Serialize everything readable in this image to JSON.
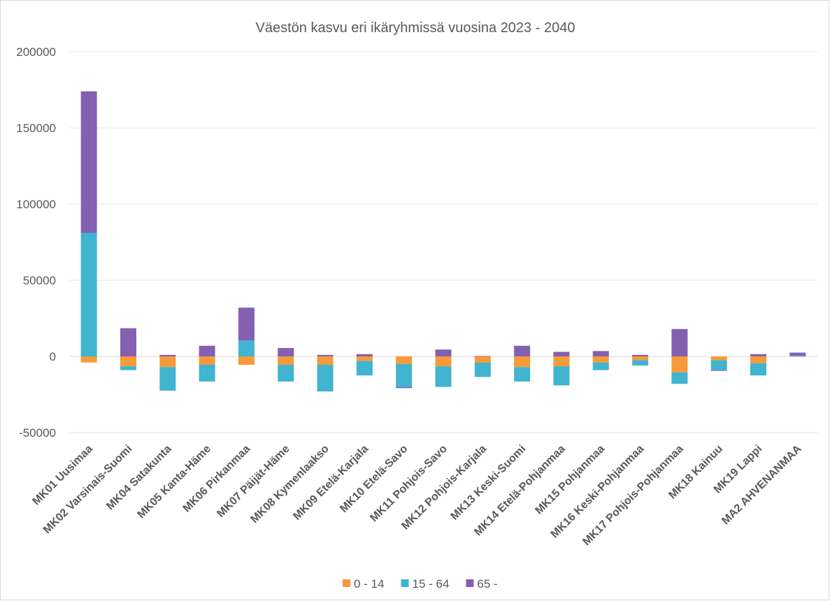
{
  "chart_data": {
    "type": "stacked_bar",
    "title": "Väestön kasvu eri ikäryhmissä vuosina 2023 - 2040",
    "categories": [
      "MK01 Uusimaa",
      "MK02 Varsinais-Suomi",
      "MK04 Satakunta",
      "MK05 Kanta-Häme",
      "MK06 Pirkanmaa",
      "MK07 Päijät-Häme",
      "MK08 Kymenlaakso",
      "MK09 Etelä-Karjala",
      "MK10 Etelä-Savo",
      "MK11 Pohjois-Savo",
      "MK12 Pohjois-Karjala",
      "MK13 Keski-Suomi",
      "MK14 Etelä-Pohjanmaa",
      "MK15 Pohjanmaa",
      "MK16 Keski-Pohjanmaa",
      "MK17 Pohjois-Pohjanmaa",
      "MK18 Kainuu",
      "MK19 Lappi",
      "MA2 AHVENANMAA"
    ],
    "series": [
      {
        "name": "0 - 14",
        "color": "#f79a3a",
        "values": [
          -4000,
          -6500,
          -7000,
          -5500,
          -5500,
          -5500,
          -5500,
          -3000,
          -5000,
          -6500,
          -4000,
          -7000,
          -6500,
          -4000,
          -2500,
          -10500,
          -2500,
          -4500,
          -200
        ]
      },
      {
        "name": "15 - 64",
        "color": "#40b4d0",
        "values": [
          81000,
          -2500,
          -15500,
          -11000,
          10500,
          -11000,
          -17500,
          -9500,
          -15000,
          -13500,
          -9500,
          -9500,
          -12500,
          -5000,
          -3500,
          -7500,
          -6500,
          -8000,
          500
        ]
      },
      {
        "name": "65 -",
        "color": "#8460b0",
        "values": [
          93000,
          18500,
          1000,
          7000,
          21500,
          5500,
          1000,
          1500,
          -800,
          4500,
          300,
          7000,
          3000,
          3500,
          1000,
          18000,
          -500,
          1500,
          2000
        ]
      }
    ],
    "ylim": [
      -50000,
      200000
    ],
    "yticks": [
      -50000,
      0,
      50000,
      100000,
      150000,
      200000
    ],
    "grid": true,
    "legend": "bottom"
  }
}
